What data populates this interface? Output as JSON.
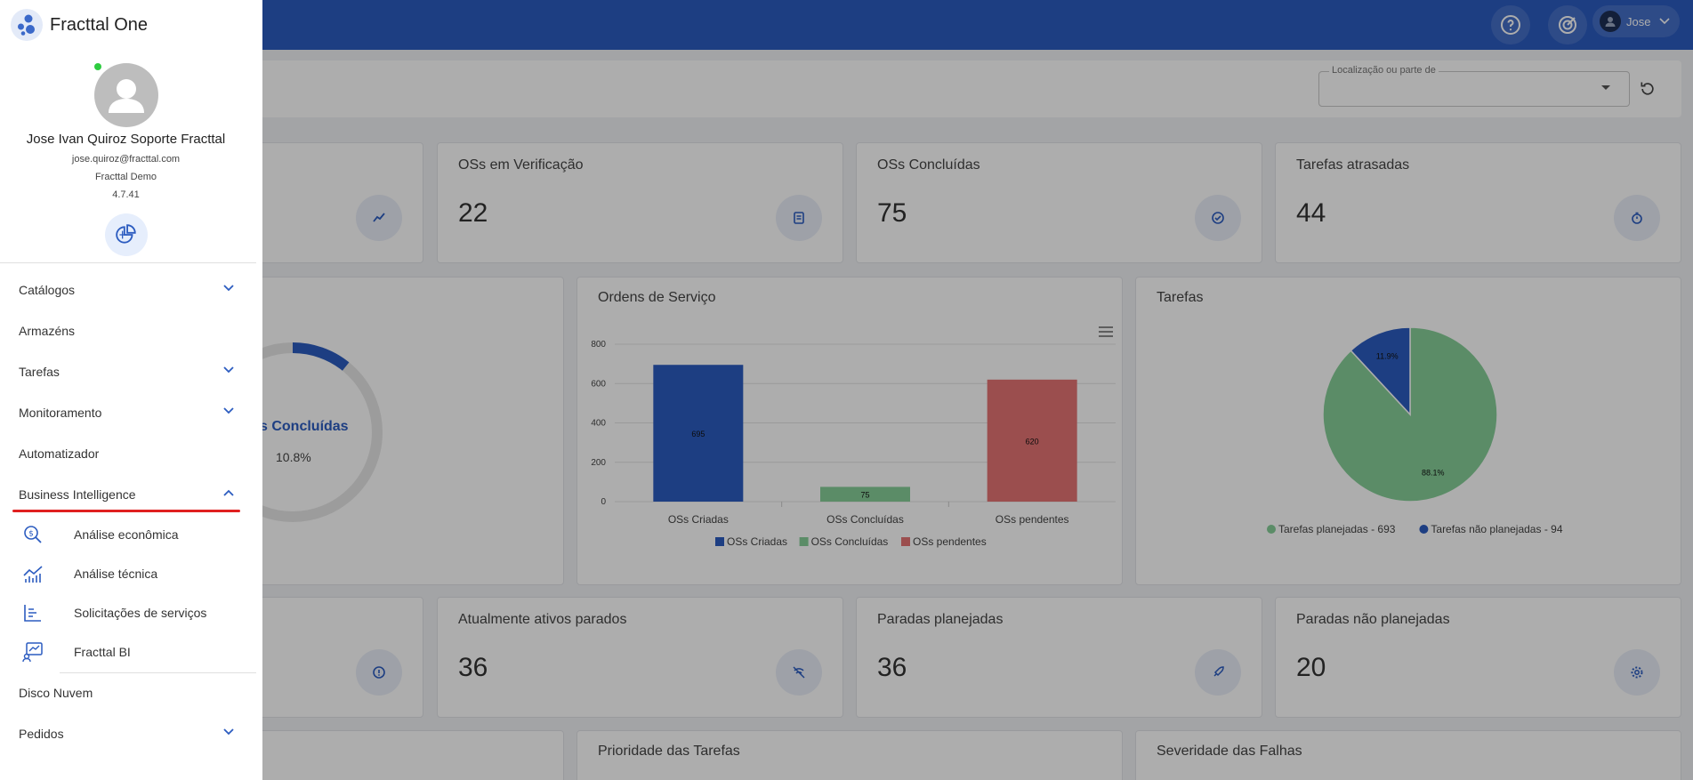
{
  "app": {
    "name": "Fracttal One"
  },
  "topbar": {
    "user_name": "Jose"
  },
  "filter": {
    "location_label": "Localização ou parte de",
    "location_value": ""
  },
  "stats_row1": [
    {
      "title": "OSs em Verificação",
      "value": "22",
      "icon": "clipboard-icon"
    },
    {
      "title": "OSs Concluídas",
      "value": "75",
      "icon": "check-circle-icon"
    },
    {
      "title": "Tarefas atrasadas",
      "value": "44",
      "icon": "timer-icon"
    }
  ],
  "donut": {
    "label": "s Concluídas",
    "percent": "10.8%",
    "value": 0.108,
    "accent": "#2c5cc0"
  },
  "orders_chart": {
    "title": "Ordens de Serviço",
    "chart_data": {
      "type": "bar",
      "categories": [
        "OSs Criadas",
        "OSs Concluídas",
        "OSs pendentes"
      ],
      "values": [
        695,
        75,
        620
      ],
      "value_labels": [
        "695",
        "75",
        "620"
      ],
      "colors": [
        "#2c5cc0",
        "#86cf99",
        "#e57373"
      ],
      "yticks": [
        "0",
        "200",
        "400",
        "600",
        "800"
      ],
      "ylim": [
        0,
        800
      ],
      "legend": [
        "OSs Criadas",
        "OSs Concluídas",
        "OSs pendentes"
      ],
      "grid": true,
      "legend_position": "bottom"
    }
  },
  "tasks_chart": {
    "title": "Tarefas",
    "chart_data": {
      "type": "pie",
      "slices": [
        {
          "name": "Tarefas planejadas - 693",
          "value": 88.1,
          "label": "88.1%",
          "color": "#86cf99"
        },
        {
          "name": "Tarefas não planejadas - 94",
          "value": 11.9,
          "label": "11.9%",
          "color": "#2c5cc0"
        }
      ],
      "legend_position": "bottom"
    }
  },
  "stats_row2": [
    {
      "title": "Atualmente ativos parados",
      "value": "36",
      "icon": "signal-off-icon"
    },
    {
      "title": "Paradas planejadas",
      "value": "36",
      "icon": "rocket-icon"
    },
    {
      "title": "Paradas não planejadas",
      "value": "20",
      "icon": "gear-icon"
    }
  ],
  "bottom_panels": [
    "Prioridade das Tarefas",
    "Severidade das Falhas"
  ],
  "drawer": {
    "user": {
      "name": "Jose Ivan Quiroz Soporte Fracttal",
      "email": "jose.quiroz@fracttal.com",
      "company": "Fracttal Demo",
      "version": "4.7.41"
    },
    "menu": [
      {
        "label": "Catálogos",
        "expandable": true
      },
      {
        "label": "Armazéns",
        "expandable": false
      },
      {
        "label": "Tarefas",
        "expandable": true
      },
      {
        "label": "Monitoramento",
        "expandable": true
      },
      {
        "label": "Automatizador",
        "expandable": false
      },
      {
        "label": "Business Intelligence",
        "expandable": true,
        "expanded": true
      }
    ],
    "bi_submenu": [
      {
        "label": "Análise econômica",
        "icon": "money-search-icon"
      },
      {
        "label": "Análise técnica",
        "icon": "chart-line-icon"
      },
      {
        "label": "Solicitações de serviços",
        "icon": "bar-list-icon"
      },
      {
        "label": "Fracttal BI",
        "icon": "monitor-chart-icon"
      }
    ],
    "menu_after": [
      {
        "label": "Disco Nuvem",
        "expandable": false
      },
      {
        "label": "Pedidos",
        "expandable": true
      }
    ]
  }
}
